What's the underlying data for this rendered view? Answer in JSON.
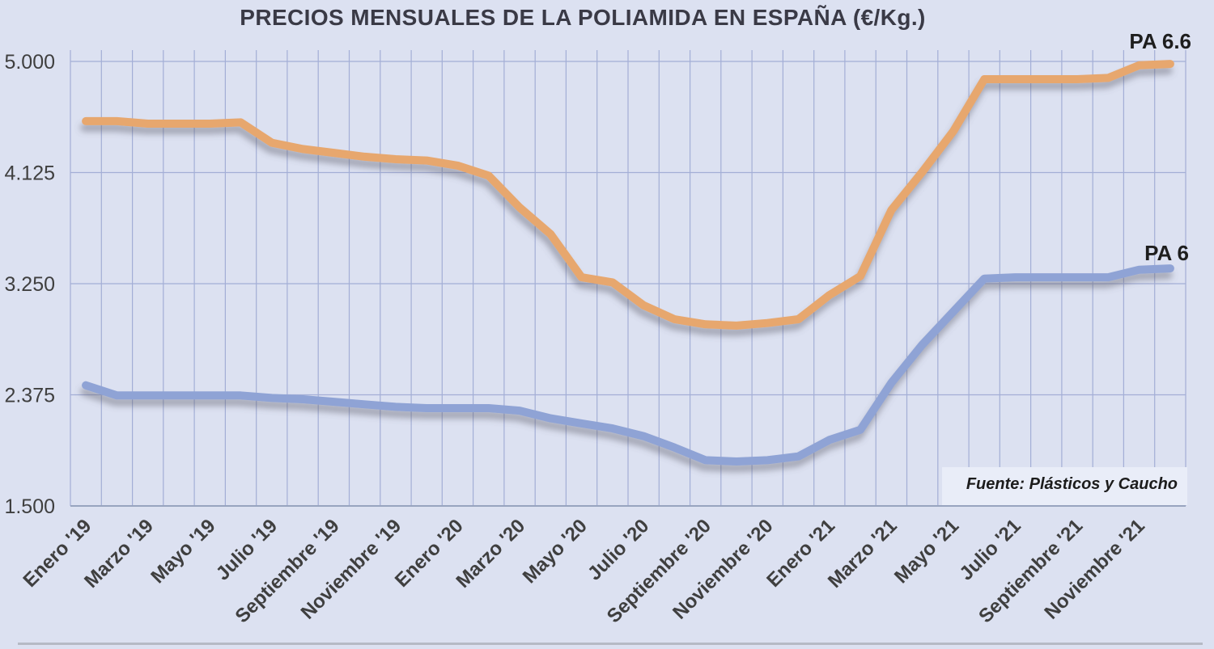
{
  "title": "PRECIOS MENSUALES DE LA POLIAMIDA EN ESPAÑA (€/Kg.)",
  "colors": {
    "background": "#dce1f1",
    "gridline": "#a3aed6",
    "axis_line": "#98a4bf",
    "pa66_line": "#e7a76e",
    "pa6_line": "#8fa3d5",
    "tick_label": "#3f3f3f",
    "title_text": "#3a3a46",
    "source_box": "#e9edf8"
  },
  "chart_data": {
    "type": "line",
    "title": "PRECIOS MENSUALES DE LA POLIAMIDA EN ESPAÑA (€/Kg.)",
    "source": "Fuente: Plásticos y Caucho",
    "grid": true,
    "legend_position": "right-inline",
    "ylim": [
      1.5,
      5.09
    ],
    "n_points": 36,
    "x_tick_step": 2,
    "x_tick_labels": [
      "Enero '19",
      "Marzo '19",
      "Mayo '19",
      "Julio '19",
      "Septiembre '19",
      "Noviembre '19",
      "Enero '20",
      "Marzo '20",
      "Mayo '20",
      "Julio '20",
      "Septiembre '20",
      "Noviembre '20",
      "Enero '21",
      "Marzo '21",
      "Mayo '21",
      "Julio '21",
      "Septiembre '21",
      "Noviembre '21"
    ],
    "y_tick_labels": [
      "5.000",
      "4.125",
      "3.250",
      "2.375",
      "1.500"
    ],
    "y_tick_values": [
      5.0,
      4.125,
      3.25,
      2.375,
      1.5
    ],
    "series": [
      {
        "name": "PA 6.6",
        "color": "#e7a76e",
        "values": [
          4.53,
          4.53,
          4.51,
          4.51,
          4.51,
          4.52,
          4.36,
          4.31,
          4.28,
          4.25,
          4.23,
          4.22,
          4.18,
          4.1,
          3.85,
          3.64,
          3.3,
          3.26,
          3.08,
          2.97,
          2.93,
          2.92,
          2.94,
          2.97,
          3.16,
          3.31,
          3.83,
          4.13,
          4.45,
          4.86,
          4.86,
          4.86,
          4.86,
          4.87,
          4.97,
          4.98
        ]
      },
      {
        "name": "PA 6",
        "color": "#8fa3d5",
        "values": [
          2.45,
          2.37,
          2.37,
          2.37,
          2.37,
          2.37,
          2.35,
          2.34,
          2.32,
          2.3,
          2.28,
          2.27,
          2.27,
          2.27,
          2.25,
          2.19,
          2.15,
          2.11,
          2.05,
          1.96,
          1.86,
          1.85,
          1.86,
          1.89,
          2.02,
          2.1,
          2.47,
          2.77,
          3.03,
          3.29,
          3.3,
          3.3,
          3.3,
          3.3,
          3.36,
          3.37
        ]
      }
    ]
  }
}
